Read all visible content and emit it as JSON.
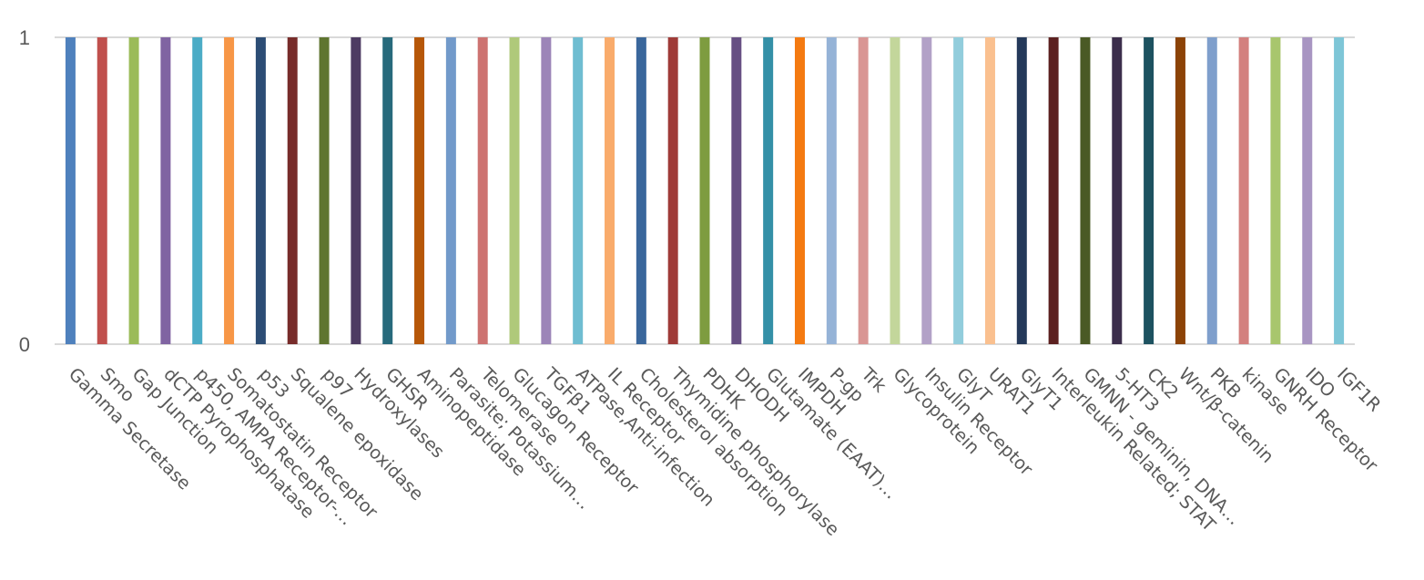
{
  "chart_data": {
    "type": "bar",
    "title": "",
    "xlabel": "",
    "ylabel": "",
    "ylim": [
      0,
      1
    ],
    "yticks": [
      0,
      1
    ],
    "grid": true,
    "legend": "none",
    "categories": [
      "Gamma Secretase",
      "Smo",
      "Gap Junction",
      "dCTP Pyrophosphatase",
      "p450, AMPA Receptor-…",
      "Somatostatin Receptor",
      "p53",
      "Squalene epoxidase",
      "p97",
      "Hydroxylases",
      "GHSR",
      "Aminopeptidase",
      "Parasite; Potassium…",
      "Telomerase",
      "Glucagon Receptor",
      "TGFβ1",
      "ATPase,Anti-infection",
      "IL Receptor",
      "Cholesterol absorption",
      "Thymidine phosphorylase",
      "PDHK",
      "DHODH",
      "Glutamate (EAAT)…",
      "IMPDH",
      "P-gp",
      "Trk",
      "Glycoprotein",
      "Insulin Receptor",
      "GlyT",
      "URAT1",
      "GlyT1",
      "Interleukin Related; STAT",
      "GMNN - geminin, DNA…",
      "5-HT3",
      "CK2",
      "Wnt/β-catenin",
      "PKB",
      "kinase",
      "GNRH Receptor",
      "IDO",
      "IGF1R"
    ],
    "values": [
      1,
      1,
      1,
      1,
      1,
      1,
      1,
      1,
      1,
      1,
      1,
      1,
      1,
      1,
      1,
      1,
      1,
      1,
      1,
      1,
      1,
      1,
      1,
      1,
      1,
      1,
      1,
      1,
      1,
      1,
      1,
      1,
      1,
      1,
      1,
      1,
      1,
      1,
      1,
      1,
      1
    ],
    "colors": [
      "#4f81bd",
      "#c0504d",
      "#9bbb59",
      "#8064a2",
      "#4bacc6",
      "#f79646",
      "#2c4d75",
      "#772c2a",
      "#5f7530",
      "#4d3b62",
      "#276a7c",
      "#b65708",
      "#729aca",
      "#cd7371",
      "#afc97a",
      "#9c85b8",
      "#6fbdd1",
      "#f9ab6b",
      "#3a679c",
      "#9f3b38",
      "#7e9c40",
      "#664f83",
      "#3490a7",
      "#f47a11",
      "#95b3d7",
      "#d99694",
      "#c3d69b",
      "#b2a1c7",
      "#92cddc",
      "#fac08f",
      "#24395a",
      "#5c2120",
      "#4a5a25",
      "#3c2e4c",
      "#1d5260",
      "#8c4306",
      "#7f9fcc",
      "#d3807e",
      "#a8c66d",
      "#a895c2",
      "#7ec6d7"
    ]
  }
}
